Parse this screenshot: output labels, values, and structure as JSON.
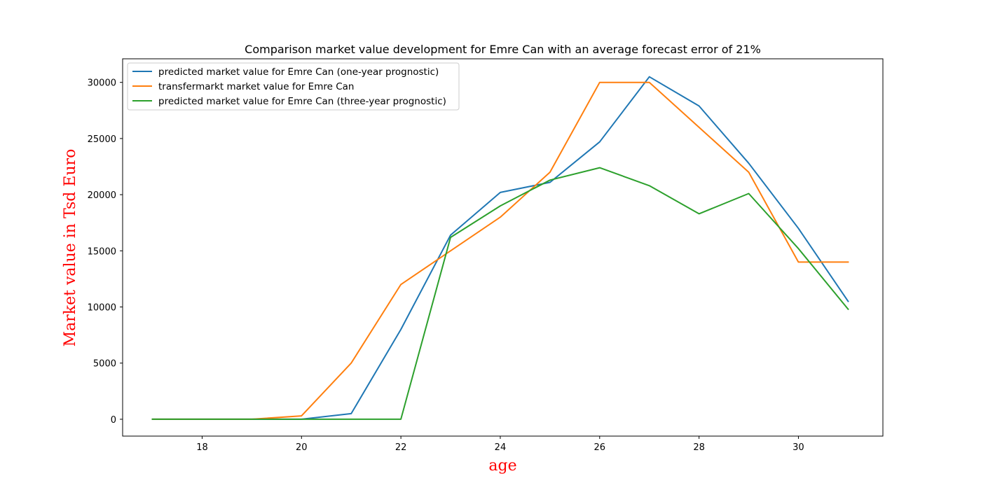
{
  "chart_data": {
    "type": "line",
    "title": "Comparison market value development for Emre Can with an average forecast error of 21%",
    "xlabel": "age",
    "ylabel": "Market value in Tsd Euro",
    "label_color": "#ff0000",
    "xlim": [
      16.4,
      31.7
    ],
    "ylim": [
      -1500,
      32100
    ],
    "x_ticks": [
      18,
      20,
      22,
      24,
      26,
      28,
      30
    ],
    "y_ticks": [
      0,
      5000,
      10000,
      15000,
      20000,
      25000,
      30000
    ],
    "grid": false,
    "legend_position": "upper left",
    "x": [
      17,
      18,
      19,
      20,
      21,
      22,
      23,
      24,
      25,
      26,
      27,
      28,
      29,
      30,
      31
    ],
    "series": [
      {
        "name": "predicted market value for Emre Can (one-year prognostic)",
        "color": "#1f77b4",
        "values": [
          0,
          0,
          0,
          0,
          500,
          8000,
          16400,
          20200,
          21100,
          24700,
          30500,
          27900,
          22800,
          17000,
          10500
        ]
      },
      {
        "name": "transfermarkt market value for Emre Can",
        "color": "#ff7f0e",
        "values": [
          0,
          0,
          0,
          300,
          5000,
          12000,
          15000,
          18000,
          22000,
          30000,
          30000,
          26000,
          22000,
          14000,
          14000
        ]
      },
      {
        "name": "predicted market value for Emre Can (three-year prognostic)",
        "color": "#2ca02c",
        "values": [
          0,
          0,
          0,
          0,
          0,
          0,
          16200,
          19000,
          21300,
          22400,
          20800,
          18300,
          20100,
          15200,
          9800
        ]
      }
    ]
  }
}
